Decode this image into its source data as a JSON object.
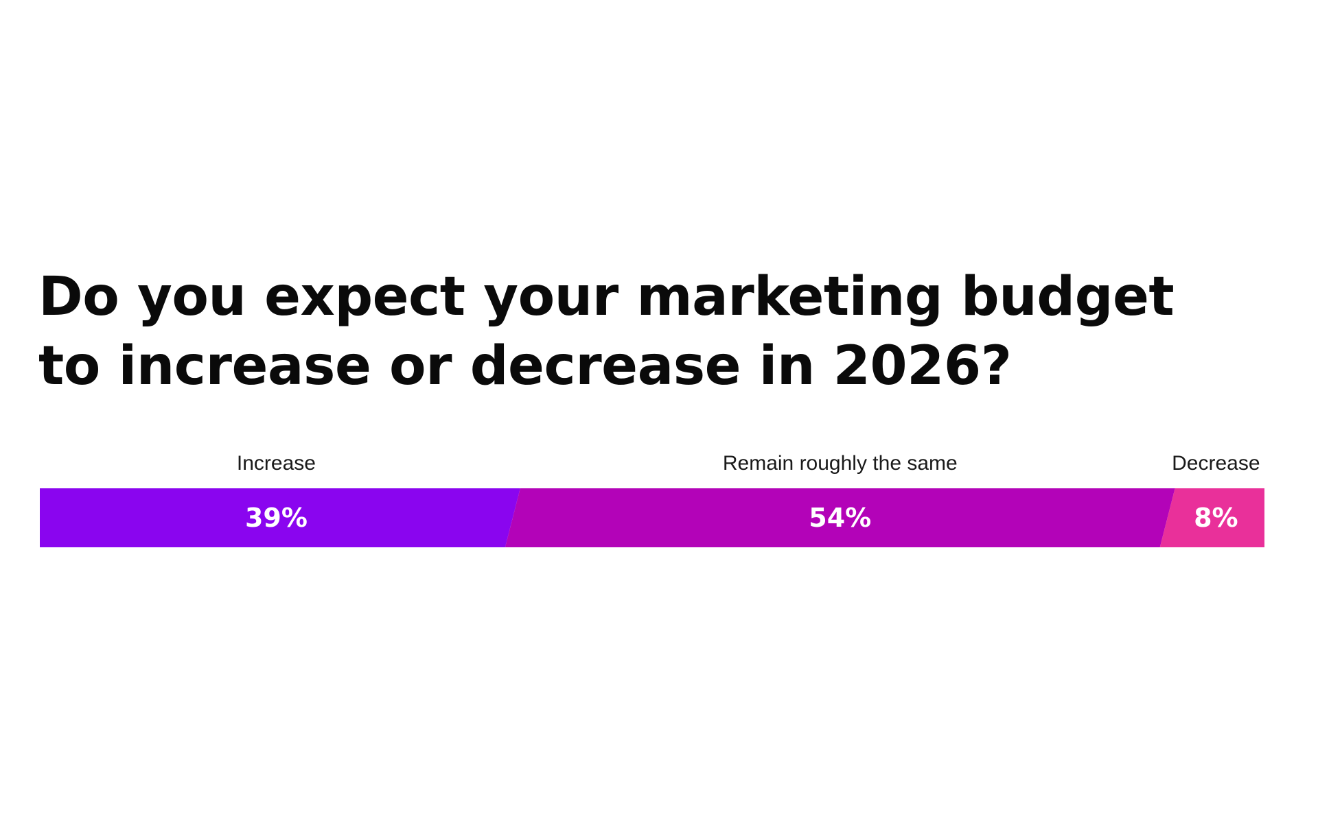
{
  "chart_data": {
    "type": "bar",
    "subtype": "100% stacked horizontal bar",
    "title_lines": [
      "Do you expect your marketing budget",
      "to increase or decrease in 2026?"
    ],
    "categories": [
      "Increase",
      "Remain roughly the same",
      "Decrease"
    ],
    "values": [
      39,
      54,
      8
    ],
    "value_labels": [
      "39%",
      "54%",
      "8%"
    ],
    "unit": "%",
    "colors": [
      "#8a05ef",
      "#b303b8",
      "#e9309a"
    ],
    "legend": "none",
    "grid": false
  }
}
